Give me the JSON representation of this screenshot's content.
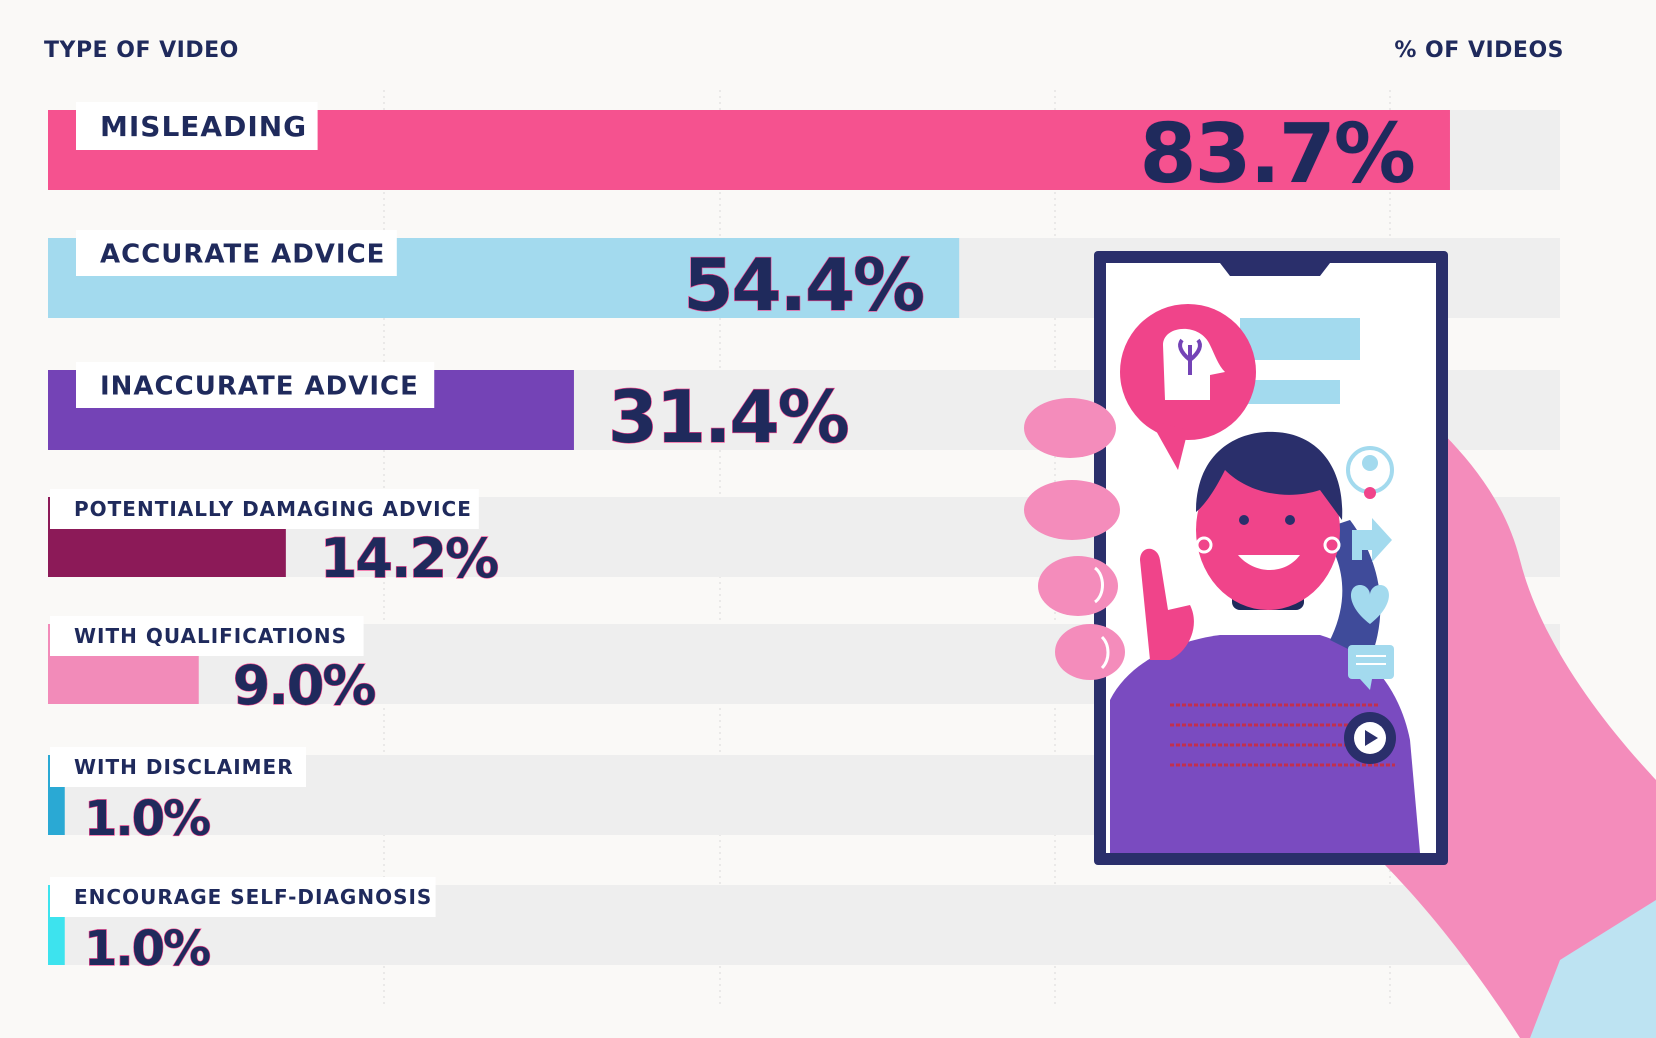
{
  "header": {
    "left_label": "TYPE OF VIDEO",
    "right_label": "% OF VIDEOS"
  },
  "colors": {
    "background": "#faf9f7",
    "track": "#eeeeee",
    "text_dark": "#1f2a5c",
    "accent_pink": "#f5468f"
  },
  "chart_data": {
    "type": "bar",
    "orientation": "horizontal",
    "xlim": [
      0,
      100
    ],
    "grid": true,
    "legend": "none",
    "categories": [
      "MISLEADING",
      "ACCURATE ADVICE",
      "INACCURATE ADVICE",
      "POTENTIALLY DAMAGING ADVICE",
      "WITH QUALIFICATIONS",
      "WITH DISCLAIMER",
      "ENCOURAGE SELF-DIAGNOSIS"
    ],
    "values": [
      83.7,
      54.4,
      31.4,
      14.2,
      9.0,
      1.0,
      1.0
    ],
    "value_labels": [
      "83.7%",
      "54.4%",
      "31.4%",
      "14.2%",
      "9.0%",
      "1.0%",
      "1.0%"
    ],
    "colors": [
      "#f5528f",
      "#a3daee",
      "#7443b6",
      "#8c1a58",
      "#f28bb9",
      "#2aa9d4",
      "#3de3ee"
    ]
  },
  "illustration": {
    "description_icons": [
      "hand-icon",
      "smartphone-icon",
      "woman-presenter-icon",
      "head-plant-bubble-icon",
      "profile-icon",
      "share-icon",
      "heart-icon",
      "comment-icon",
      "play-icon"
    ]
  }
}
